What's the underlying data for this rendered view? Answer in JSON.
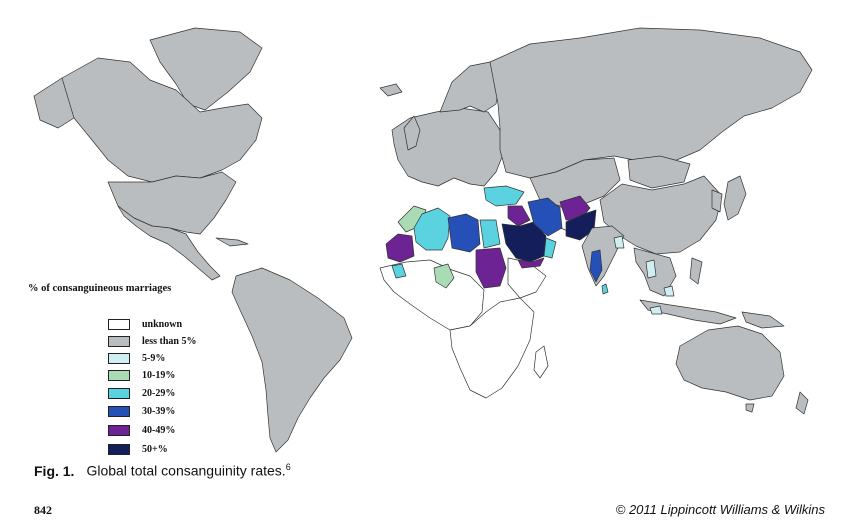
{
  "legend": {
    "title": "% of consanguineous marriages",
    "items": [
      {
        "label": "unknown",
        "color": "#ffffff"
      },
      {
        "label": "less than 5%",
        "color": "#b9bdbf"
      },
      {
        "label": "5-9%",
        "color": "#cfeff2"
      },
      {
        "label": "10-19%",
        "color": "#a9dcb5"
      },
      {
        "label": "20-29%",
        "color": "#5ad2e0"
      },
      {
        "label": "30-39%",
        "color": "#2450b8"
      },
      {
        "label": "40-49%",
        "color": "#6e2394"
      },
      {
        "label": "50+%",
        "color": "#141e5a"
      }
    ]
  },
  "caption": {
    "label": "Fig. 1.",
    "text": "Global total consanguinity rates.",
    "reference": "6"
  },
  "footer": {
    "page_number": "842",
    "copyright": "© 2011 Lippincott Williams & Wilkins"
  }
}
